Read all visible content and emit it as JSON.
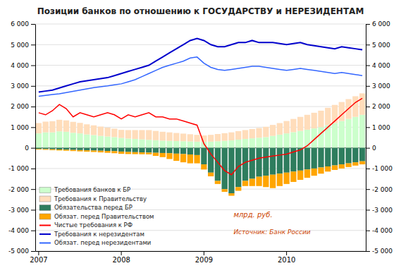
{
  "chart_data": {
    "type": "bar",
    "title": "Позиции банков по отношению к ГОСУДАРСТВУ и НЕРЕЗИДЕНТАМ",
    "stacked": true,
    "grid": true,
    "legend": "lower left",
    "categories": [
      "2007",
      null,
      null,
      null,
      null,
      null,
      null,
      null,
      null,
      null,
      null,
      null,
      "2008",
      null,
      null,
      null,
      null,
      null,
      null,
      null,
      null,
      null,
      null,
      null,
      "2009",
      null,
      null,
      null,
      null,
      null,
      null,
      null,
      null,
      null,
      null,
      null,
      "2010",
      null,
      null,
      null,
      null,
      null,
      null,
      null,
      null,
      null,
      null,
      null
    ],
    "ylim": [
      -5000,
      6000
    ],
    "yticks": [
      {
        "value": -5000,
        "label": "-5 000"
      },
      {
        "value": -4000,
        "label": "-4 000"
      },
      {
        "value": -3000,
        "label": "-3 000"
      },
      {
        "value": -2000,
        "label": "-2 000"
      },
      {
        "value": -1000,
        "label": "-1 000"
      },
      0,
      {
        "value": 1000,
        "label": "1 000"
      },
      {
        "value": 2000,
        "label": "2 000"
      },
      {
        "value": 3000,
        "label": "3 000"
      },
      {
        "value": 4000,
        "label": "4 000"
      },
      {
        "value": 5000,
        "label": "5 000"
      },
      {
        "value": 6000,
        "label": "6 000"
      }
    ],
    "y2lim": [
      -5000,
      6000
    ],
    "y2ticks": [
      {
        "value": -5000,
        "label": "-5 000"
      },
      {
        "value": -4000,
        "label": "-4 000"
      },
      {
        "value": -3000,
        "label": "-3 000"
      },
      {
        "value": -2000,
        "label": "-2 000"
      },
      {
        "value": -1000,
        "label": "-1 000"
      },
      0,
      {
        "value": 1000,
        "label": "1 000"
      },
      {
        "value": 2000,
        "label": "2 000"
      },
      {
        "value": 3000,
        "label": "3 000"
      },
      {
        "value": 4000,
        "label": "4 000"
      },
      {
        "value": 5000,
        "label": "5 000"
      },
      {
        "value": 6000,
        "label": "6 000"
      }
    ],
    "series": [
      {
        "name": "Требования банков к БР",
        "type": "bar",
        "color": "#ccffcc",
        "values": [
          700,
          750,
          750,
          800,
          780,
          730,
          700,
          650,
          620,
          580,
          550,
          520,
          480,
          450,
          430,
          410,
          390,
          370,
          350,
          340,
          330,
          320,
          310,
          300,
          290,
          300,
          320,
          340,
          360,
          400,
          430,
          460,
          490,
          520,
          580,
          640,
          700,
          760,
          820,
          880,
          940,
          1000,
          1100,
          1200,
          1300,
          1400,
          1500,
          1600
        ]
      },
      {
        "name": "Требования к Правительству",
        "type": "bar",
        "color": "#ffddbb",
        "values": [
          500,
          520,
          540,
          560,
          550,
          530,
          510,
          490,
          470,
          450,
          430,
          410,
          390,
          410,
          430,
          450,
          470,
          450,
          430,
          410,
          390,
          370,
          350,
          330,
          310,
          330,
          350,
          370,
          390,
          410,
          430,
          450,
          470,
          500,
          530,
          560,
          600,
          640,
          680,
          720,
          760,
          800,
          840,
          880,
          920,
          960,
          1000,
          1040
        ]
      },
      {
        "name": "Обязательства перед БР",
        "type": "bar",
        "color": "#2e7d5e",
        "values": [
          -50,
          -60,
          -70,
          -80,
          -90,
          -100,
          -110,
          -120,
          -130,
          -140,
          -150,
          -160,
          -180,
          -200,
          -210,
          -220,
          -230,
          -240,
          -250,
          -260,
          -280,
          -300,
          -320,
          -350,
          -800,
          -1200,
          -1600,
          -2000,
          -2200,
          -1900,
          -1600,
          -1500,
          -1400,
          -1350,
          -1300,
          -1250,
          -1200,
          -1150,
          -1100,
          -1050,
          -1000,
          -950,
          -900,
          -850,
          -800,
          -750,
          -700,
          -650
        ]
      },
      {
        "name": "Обязат. перед Правительством",
        "type": "bar",
        "color": "#ffa500",
        "values": [
          -30,
          -35,
          -40,
          -45,
          -50,
          -55,
          -60,
          -65,
          -70,
          -80,
          -90,
          -100,
          -110,
          -100,
          -95,
          -90,
          -85,
          -150,
          -200,
          -280,
          -350,
          -400,
          -430,
          -400,
          -250,
          -180,
          -150,
          -130,
          -120,
          -180,
          -250,
          -350,
          -450,
          -550,
          -650,
          -600,
          -550,
          -500,
          -450,
          -400,
          -350,
          -300,
          -250,
          -220,
          -200,
          -180,
          -160,
          -150
        ]
      },
      {
        "name": "Чистые требования к РФ",
        "type": "line",
        "color": "#ff0000",
        "values": [
          1700,
          1600,
          1800,
          2100,
          1900,
          1500,
          1700,
          1600,
          1500,
          1600,
          1700,
          1600,
          1400,
          1600,
          1500,
          1600,
          1700,
          1500,
          1500,
          1400,
          1400,
          1300,
          1200,
          1100,
          200,
          -300,
          -700,
          -1100,
          -1300,
          -900,
          -700,
          -600,
          -500,
          -450,
          -400,
          -350,
          -300,
          -200,
          -100,
          100,
          400,
          700,
          1000,
          1300,
          1600,
          1900,
          2200,
          2400
        ]
      },
      {
        "name": "Требования к нерезидентам",
        "type": "line",
        "color": "#0000cc",
        "axis": "y2",
        "values": [
          2700,
          2750,
          2800,
          2900,
          3000,
          3100,
          3200,
          3250,
          3300,
          3350,
          3400,
          3500,
          3600,
          3700,
          3800,
          3900,
          4000,
          4200,
          4400,
          4600,
          4800,
          5000,
          5200,
          5300,
          5200,
          5000,
          4900,
          4900,
          5000,
          5100,
          5100,
          5200,
          5100,
          5100,
          5100,
          5050,
          5000,
          5050,
          5100,
          5000,
          4950,
          4900,
          4850,
          4800,
          4900,
          4850,
          4800,
          4750
        ]
      },
      {
        "name": "Обязат. перед нерезидентами",
        "type": "line",
        "color": "#3366ff",
        "axis": "y2",
        "values": [
          2500,
          2540,
          2580,
          2620,
          2680,
          2740,
          2800,
          2860,
          2920,
          2960,
          3000,
          3050,
          3100,
          3200,
          3300,
          3450,
          3600,
          3750,
          3900,
          4000,
          4100,
          4200,
          4350,
          4400,
          4100,
          3900,
          3800,
          3750,
          3800,
          3850,
          3900,
          3950,
          3950,
          3900,
          3850,
          3800,
          3750,
          3800,
          3850,
          3800,
          3750,
          3700,
          3650,
          3600,
          3650,
          3600,
          3550,
          3500
        ]
      }
    ],
    "annotations": [
      "млрд. руб.",
      "Источник: Банк России"
    ]
  }
}
